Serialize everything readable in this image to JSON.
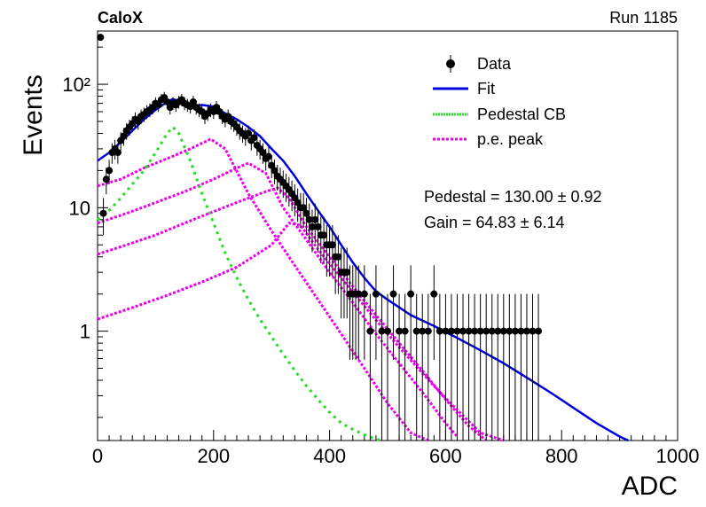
{
  "header": {
    "left": "CaloX",
    "right": "Run 1185"
  },
  "chart_data": {
    "type": "scatter",
    "xlabel": "ADC",
    "ylabel": "Events",
    "xlim": [
      0,
      1000
    ],
    "ylim": [
      0.13,
      270
    ],
    "y_scale": "log",
    "x_ticks": [
      "0",
      "200",
      "400",
      "600",
      "800",
      "1000"
    ],
    "y_tick_labels": [
      {
        "value": 1,
        "text": "1"
      },
      {
        "value": 10,
        "text": "10"
      },
      {
        "value": 100,
        "text": "10²"
      }
    ],
    "grid": false,
    "legend_position": "top-right",
    "legend": [
      "Data",
      "Fit",
      "Pedestal CB",
      "p.e. peak"
    ],
    "annotations": [
      "Pedestal = 130.00 ± 0.92",
      "Gain = 64.83 ± 6.14"
    ],
    "colors": {
      "data": "#000000",
      "fit": "#0000e0",
      "pedestal": "#22dd22",
      "pe_peak": "#ee00ee"
    },
    "series": [
      {
        "name": "Data",
        "style": "points-with-error-bars",
        "x": [
          5,
          10,
          15,
          20,
          25,
          30,
          35,
          40,
          45,
          50,
          55,
          60,
          65,
          70,
          75,
          80,
          85,
          90,
          95,
          100,
          105,
          110,
          115,
          120,
          125,
          130,
          135,
          140,
          145,
          150,
          155,
          160,
          165,
          170,
          175,
          180,
          185,
          190,
          195,
          200,
          205,
          210,
          215,
          220,
          225,
          230,
          235,
          240,
          245,
          250,
          255,
          260,
          265,
          270,
          275,
          280,
          285,
          290,
          295,
          300,
          305,
          310,
          315,
          320,
          325,
          330,
          335,
          340,
          345,
          350,
          355,
          360,
          365,
          370,
          375,
          380,
          385,
          390,
          395,
          400,
          405,
          410,
          415,
          420,
          425,
          430,
          435,
          440,
          445,
          450,
          460,
          470,
          480,
          490,
          500,
          510,
          520,
          530,
          540,
          550,
          560,
          570,
          580,
          590,
          600,
          610,
          620,
          630,
          640,
          650,
          660,
          670,
          680,
          690,
          700,
          710,
          720,
          730,
          740,
          750,
          760
        ],
        "y": [
          240,
          9,
          17,
          20,
          28,
          30,
          28,
          35,
          38,
          42,
          45,
          48,
          52,
          50,
          55,
          57,
          60,
          62,
          65,
          70,
          68,
          75,
          78,
          72,
          65,
          70,
          68,
          72,
          75,
          70,
          68,
          66,
          72,
          65,
          62,
          60,
          55,
          58,
          62,
          60,
          65,
          60,
          55,
          52,
          55,
          50,
          48,
          45,
          42,
          40,
          38,
          40,
          35,
          37,
          32,
          30,
          28,
          25,
          26,
          22,
          20,
          18,
          17,
          16,
          15,
          14,
          13,
          12,
          11,
          10,
          10,
          9,
          8,
          7,
          8,
          7,
          6,
          6,
          5,
          5,
          5,
          4,
          4,
          3,
          3,
          3,
          2,
          2,
          2,
          2,
          2,
          1,
          2,
          1,
          1,
          2,
          1,
          1,
          2,
          1,
          1,
          1,
          2,
          1,
          1,
          1,
          1,
          1,
          1,
          1,
          1,
          1,
          1,
          1,
          1,
          1,
          1,
          1,
          1,
          1,
          1
        ]
      },
      {
        "name": "Fit",
        "style": "line",
        "x": [
          0,
          20,
          40,
          60,
          80,
          100,
          120,
          130,
          140,
          160,
          180,
          200,
          220,
          240,
          260,
          280,
          300,
          320,
          340,
          360,
          380,
          400,
          420,
          440,
          460,
          480,
          500,
          540,
          580,
          620,
          660,
          700,
          740,
          780,
          820,
          860,
          900,
          915
        ],
        "y": [
          24,
          28,
          34,
          42,
          52,
          62,
          72,
          76,
          72,
          66,
          68,
          66,
          58,
          52,
          45,
          38,
          30,
          24,
          18,
          13,
          9.5,
          7,
          5,
          3.6,
          2.7,
          2.1,
          1.8,
          1.35,
          1.1,
          0.88,
          0.7,
          0.55,
          0.42,
          0.32,
          0.24,
          0.18,
          0.14,
          0.13
        ]
      },
      {
        "name": "Pedestal CB",
        "style": "dotted",
        "x": [
          0,
          20,
          40,
          60,
          80,
          100,
          120,
          130,
          140,
          160,
          180,
          200,
          220,
          240,
          260,
          280,
          300,
          320,
          340,
          360,
          380,
          400,
          420,
          440,
          460,
          480,
          490
        ],
        "y": [
          8,
          9.5,
          12,
          15.5,
          20,
          28,
          40,
          45,
          40,
          24,
          13,
          7.5,
          4.3,
          2.7,
          1.8,
          1.25,
          0.9,
          0.65,
          0.48,
          0.36,
          0.28,
          0.22,
          0.18,
          0.16,
          0.145,
          0.133,
          0.13
        ]
      },
      {
        "name": "p.e. peak 1",
        "style": "dotted",
        "x": [
          0,
          40,
          80,
          120,
          160,
          195,
          220,
          260,
          300,
          340,
          380,
          420,
          460,
          500,
          540,
          570
        ],
        "y": [
          15,
          17,
          21,
          25,
          30,
          36,
          30,
          13,
          6.5,
          3.4,
          1.8,
          0.95,
          0.5,
          0.26,
          0.15,
          0.13
        ]
      },
      {
        "name": "p.e. peak 2",
        "style": "dotted",
        "x": [
          0,
          50,
          100,
          150,
          200,
          240,
          260,
          290,
          320,
          360,
          400,
          440,
          480,
          520,
          560,
          600,
          620
        ],
        "y": [
          7.5,
          9,
          11,
          13.5,
          17,
          21,
          23,
          19,
          10,
          5.5,
          3.0,
          1.7,
          0.95,
          0.55,
          0.32,
          0.18,
          0.14
        ]
      },
      {
        "name": "p.e. peak 3",
        "style": "dotted",
        "x": [
          0,
          50,
          100,
          150,
          200,
          250,
          290,
          310,
          330,
          360,
          400,
          440,
          480,
          520,
          560,
          600,
          640,
          670
        ],
        "y": [
          4.2,
          5,
          6,
          7.5,
          9.3,
          11.5,
          13.5,
          14.5,
          12,
          7,
          4.0,
          2.3,
          1.35,
          0.8,
          0.48,
          0.28,
          0.17,
          0.13
        ]
      },
      {
        "name": "p.e. peak 4",
        "style": "dotted",
        "x": [
          0,
          60,
          120,
          180,
          240,
          300,
          330,
          350,
          380,
          420,
          460,
          500,
          540,
          580,
          620,
          660,
          700
        ],
        "y": [
          1.25,
          1.55,
          1.95,
          2.5,
          3.3,
          5.0,
          7.5,
          7.2,
          4.6,
          2.7,
          1.6,
          0.95,
          0.58,
          0.36,
          0.23,
          0.15,
          0.13
        ]
      }
    ]
  }
}
